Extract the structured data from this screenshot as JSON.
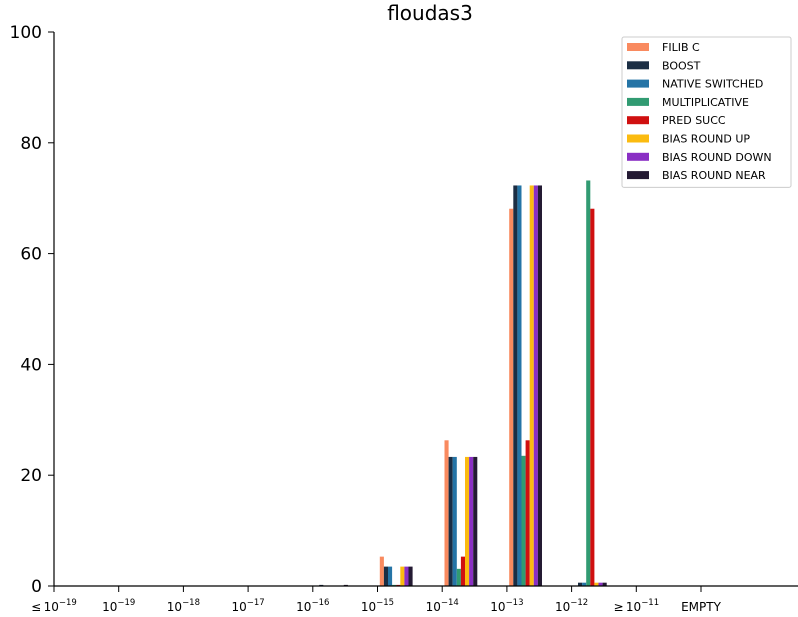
{
  "chart_data": {
    "type": "bar",
    "title": "floudas3",
    "xlabel": "",
    "ylabel": "",
    "ylim": [
      0,
      100
    ],
    "yticks": [
      0,
      20,
      40,
      60,
      80,
      100
    ],
    "categories": [
      {
        "prefix": "≤",
        "base": "10",
        "exp": "−19"
      },
      {
        "prefix": "",
        "base": "10",
        "exp": "−19"
      },
      {
        "prefix": "",
        "base": "10",
        "exp": "−18"
      },
      {
        "prefix": "",
        "base": "10",
        "exp": "−17"
      },
      {
        "prefix": "",
        "base": "10",
        "exp": "−16"
      },
      {
        "prefix": "",
        "base": "10",
        "exp": "−15"
      },
      {
        "prefix": "",
        "base": "10",
        "exp": "−14"
      },
      {
        "prefix": "",
        "base": "10",
        "exp": "−13"
      },
      {
        "prefix": "",
        "base": "10",
        "exp": "−12"
      },
      {
        "prefix": "≥",
        "base": "10",
        "exp": "−11"
      },
      {
        "prefix": "",
        "base": "EMPTY",
        "exp": ""
      }
    ],
    "legend_position": "top-right",
    "series": [
      {
        "name": "FILIB C",
        "color": "#f98a5f",
        "values": [
          0,
          0,
          0,
          0,
          0,
          5.3,
          26.3,
          68.1,
          0,
          0,
          0
        ]
      },
      {
        "name": "BOOST",
        "color": "#1b2e44",
        "values": [
          0,
          0,
          0,
          0,
          0.2,
          3.5,
          23.3,
          72.3,
          0.6,
          0,
          0
        ]
      },
      {
        "name": "NATIVE SWITCHED",
        "color": "#2574a6",
        "values": [
          0,
          0,
          0,
          0,
          0,
          3.5,
          23.3,
          72.3,
          0.6,
          0,
          0
        ]
      },
      {
        "name": "MULTIPLICATIVE",
        "color": "#319b72",
        "values": [
          0,
          0,
          0,
          0,
          0,
          0.2,
          3.1,
          23.5,
          73.2,
          0,
          0
        ]
      },
      {
        "name": "PRED SUCC",
        "color": "#d01010",
        "values": [
          0,
          0,
          0,
          0,
          0,
          0.2,
          5.3,
          26.3,
          68.1,
          0,
          0
        ]
      },
      {
        "name": "BIAS ROUND UP",
        "color": "#fbbb10",
        "values": [
          0,
          0,
          0,
          0,
          0,
          3.5,
          23.3,
          72.3,
          0.6,
          0,
          0
        ]
      },
      {
        "name": "BIAS ROUND DOWN",
        "color": "#8a2fc4",
        "values": [
          0,
          0,
          0,
          0,
          0,
          3.5,
          23.3,
          72.3,
          0.6,
          0,
          0
        ]
      },
      {
        "name": "BIAS ROUND NEAR",
        "color": "#241a33",
        "values": [
          0,
          0,
          0,
          0,
          0.2,
          3.5,
          23.3,
          72.3,
          0.6,
          0,
          0
        ]
      }
    ]
  }
}
